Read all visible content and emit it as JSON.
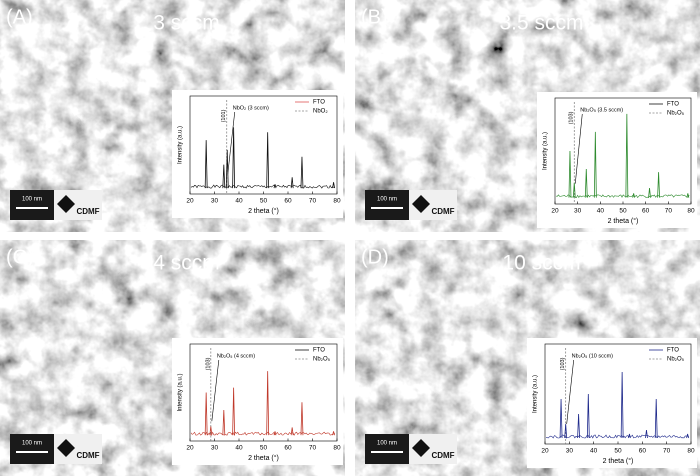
{
  "panels": [
    {
      "label": "(A)",
      "title": "3 sccm",
      "scale_bar": "100 nm",
      "logo": "CDMF",
      "inset": {
        "color": "#111111",
        "y_label": "Intensity (a.u.)",
        "x_label": "2 theta (°)",
        "xlim": [
          20,
          80
        ],
        "ylim": [
          0,
          1
        ],
        "xticks": [
          20,
          30,
          40,
          50,
          60,
          70,
          80
        ],
        "legend": [
          {
            "name": "FTO",
            "color": "#e05555",
            "dash": false
          },
          {
            "name": "NbO₂",
            "color": "#888888",
            "dash": true
          }
        ],
        "reference_line": 35,
        "plane": "(101)",
        "annotation": "NbO₂ (3 sccm)",
        "peaks": {
          "x": [
            26.6,
            33.8,
            35.2,
            37.8,
            51.7,
            54.7,
            61.7,
            65.7,
            78.6
          ],
          "y": [
            0.55,
            0.3,
            0.45,
            0.68,
            0.63,
            0.1,
            0.17,
            0.38,
            0.12
          ]
        }
      }
    },
    {
      "label": "(B)",
      "title": "3.5 sccm",
      "scale_bar": "100 nm",
      "logo": "CDMF",
      "inset": {
        "color": "#2e8b2e",
        "y_label": "Intensity (a.u.)",
        "x_label": "2 theta (°)",
        "xlim": [
          20,
          80
        ],
        "ylim": [
          0,
          1
        ],
        "xticks": [
          20,
          30,
          40,
          50,
          60,
          70,
          80
        ],
        "legend": [
          {
            "name": "FTO",
            "color": "#111111",
            "dash": false
          },
          {
            "name": "Nb₂O₅",
            "color": "#888888",
            "dash": true
          }
        ],
        "reference_line": 28.5,
        "plane": "(103)",
        "annotation": "Nb₂O₅ (3.5 sccm)",
        "peaks": {
          "x": [
            26.6,
            28.5,
            33.8,
            37.8,
            51.7,
            54.7,
            61.7,
            65.7,
            78.6
          ],
          "y": [
            0.5,
            0.2,
            0.33,
            0.68,
            0.85,
            0.1,
            0.15,
            0.3,
            0.1
          ]
        }
      }
    },
    {
      "label": "(C)",
      "title": "4 sccm",
      "scale_bar": "100 nm",
      "logo": "CDMF",
      "inset": {
        "color": "#c0392b",
        "y_label": "Intensity (a.u.)",
        "x_label": "2 theta (°)",
        "xlim": [
          20,
          80
        ],
        "ylim": [
          0,
          1
        ],
        "xticks": [
          20,
          30,
          40,
          50,
          60,
          70,
          80
        ],
        "legend": [
          {
            "name": "FTO",
            "color": "#111111",
            "dash": false
          },
          {
            "name": "Nb₂O₅",
            "color": "#888888",
            "dash": true
          }
        ],
        "reference_line": 28.5,
        "plane": "(103)",
        "annotation": "Nb₂O₅ (4 sccm)",
        "peaks": {
          "x": [
            26.6,
            28.5,
            33.8,
            37.8,
            51.7,
            54.7,
            61.7,
            65.7,
            78.6
          ],
          "y": [
            0.5,
            0.15,
            0.32,
            0.55,
            0.72,
            0.1,
            0.14,
            0.4,
            0.1
          ]
        }
      }
    },
    {
      "label": "(D)",
      "title": "10 sccm",
      "scale_bar": "100 nm",
      "logo": "CDMF",
      "inset": {
        "color": "#1f2a8c",
        "y_label": "Intensity (a.u.)",
        "x_label": "2 theta (°)",
        "xlim": [
          20,
          80
        ],
        "ylim": [
          0,
          1
        ],
        "xticks": [
          20,
          30,
          40,
          50,
          60,
          70,
          80
        ],
        "legend": [
          {
            "name": "FTO",
            "color": "#1f2a8c",
            "dash": false
          },
          {
            "name": "Nb₂O₅",
            "color": "#888888",
            "dash": true
          }
        ],
        "reference_line": 28.5,
        "plane": "(103)",
        "annotation": "Nb₂O₅ (10 sccm)",
        "peaks": {
          "x": [
            26.6,
            28.5,
            33.8,
            37.8,
            51.7,
            54.7,
            61.7,
            65.7,
            78.6
          ],
          "y": [
            0.45,
            0.2,
            0.3,
            0.5,
            0.72,
            0.1,
            0.14,
            0.45,
            0.1
          ]
        }
      }
    }
  ]
}
